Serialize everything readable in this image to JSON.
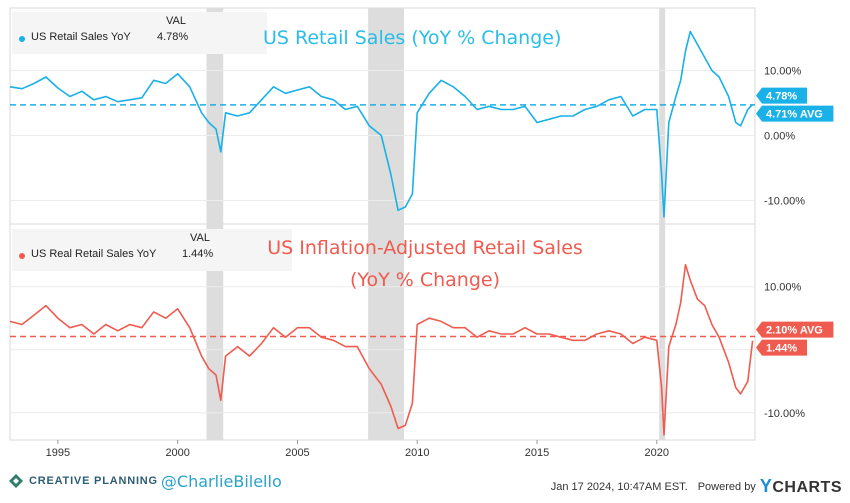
{
  "chart_data": [
    {
      "type": "line",
      "title": "US Retail Sales (YoY % Change)",
      "series": [
        {
          "name": "US Retail Sales YoY",
          "latest_value": "4.78%",
          "average": "4.71% AVG",
          "color": "#1ab0e8",
          "x": [
            1993.0,
            1993.5,
            1994.0,
            1994.5,
            1995.0,
            1995.5,
            1996.0,
            1996.5,
            1997.0,
            1997.5,
            1998.0,
            1998.5,
            1999.0,
            1999.5,
            2000.0,
            2000.5,
            2001.0,
            2001.3,
            2001.6,
            2001.8,
            2002.0,
            2002.5,
            2003.0,
            2003.5,
            2004.0,
            2004.5,
            2005.0,
            2005.5,
            2006.0,
            2006.5,
            2007.0,
            2007.5,
            2008.0,
            2008.5,
            2008.9,
            2009.2,
            2009.5,
            2009.8,
            2010.0,
            2010.5,
            2011.0,
            2011.5,
            2012.0,
            2012.5,
            2013.0,
            2013.5,
            2014.0,
            2014.5,
            2015.0,
            2015.5,
            2016.0,
            2016.5,
            2017.0,
            2017.5,
            2018.0,
            2018.5,
            2019.0,
            2019.5,
            2020.0,
            2020.2,
            2020.3,
            2020.5,
            2020.8,
            2021.0,
            2021.2,
            2021.4,
            2021.7,
            2022.0,
            2022.3,
            2022.6,
            2023.0,
            2023.3,
            2023.5,
            2023.8,
            2024.0
          ],
          "y": [
            7.5,
            7.2,
            8.0,
            9.0,
            7.3,
            6.0,
            6.8,
            5.5,
            6.0,
            5.2,
            5.5,
            5.8,
            8.5,
            8.0,
            9.5,
            7.5,
            3.5,
            2.0,
            1.0,
            -2.5,
            3.5,
            3.0,
            3.5,
            5.5,
            7.5,
            6.5,
            7.0,
            7.5,
            6.0,
            5.5,
            4.0,
            4.5,
            1.5,
            0.0,
            -6.0,
            -11.5,
            -11.0,
            -9.0,
            3.5,
            6.5,
            8.5,
            7.5,
            6.0,
            4.0,
            4.5,
            4.0,
            4.0,
            4.5,
            2.0,
            2.5,
            3.0,
            3.0,
            4.0,
            4.5,
            5.5,
            6.0,
            3.0,
            4.0,
            4.0,
            -6.0,
            -12.5,
            2.0,
            6.0,
            8.5,
            13.0,
            16.0,
            14.0,
            12.0,
            10.0,
            9.0,
            6.0,
            2.0,
            1.5,
            4.0,
            4.78
          ],
          "ylim": [
            -13,
            19
          ],
          "yticks": [
            "10.00%",
            "0.00%",
            "-10.00%"
          ],
          "ytick_values": [
            10,
            0,
            -10
          ]
        }
      ]
    },
    {
      "type": "line",
      "title": "US Inflation-Adjusted Retail Sales (YoY % Change)",
      "series": [
        {
          "name": "US Real Retail Sales YoY",
          "latest_value": "1.44%",
          "average": "2.10% AVG",
          "color": "#ef5b4f",
          "x": [
            1993.0,
            1993.5,
            1994.0,
            1994.5,
            1995.0,
            1995.5,
            1996.0,
            1996.5,
            1997.0,
            1997.5,
            1998.0,
            1998.5,
            1999.0,
            1999.5,
            2000.0,
            2000.5,
            2001.0,
            2001.3,
            2001.6,
            2001.8,
            2002.0,
            2002.5,
            2003.0,
            2003.5,
            2004.0,
            2004.5,
            2005.0,
            2005.5,
            2006.0,
            2006.5,
            2007.0,
            2007.5,
            2008.0,
            2008.5,
            2008.9,
            2009.2,
            2009.5,
            2009.8,
            2010.0,
            2010.5,
            2011.0,
            2011.5,
            2012.0,
            2012.5,
            2013.0,
            2013.5,
            2014.0,
            2014.5,
            2015.0,
            2015.5,
            2016.0,
            2016.5,
            2017.0,
            2017.5,
            2018.0,
            2018.5,
            2019.0,
            2019.5,
            2020.0,
            2020.2,
            2020.3,
            2020.5,
            2020.8,
            2021.0,
            2021.2,
            2021.4,
            2021.7,
            2022.0,
            2022.3,
            2022.6,
            2023.0,
            2023.3,
            2023.5,
            2023.8,
            2024.0
          ],
          "y": [
            4.5,
            4.0,
            5.5,
            7.0,
            5.0,
            3.5,
            4.0,
            2.5,
            4.0,
            3.0,
            4.0,
            3.5,
            6.0,
            5.0,
            6.5,
            3.5,
            -1.0,
            -3.0,
            -4.0,
            -8.0,
            -1.0,
            0.5,
            -1.0,
            1.0,
            3.5,
            2.0,
            3.5,
            3.5,
            2.0,
            1.5,
            0.5,
            0.5,
            -3.0,
            -5.5,
            -9.0,
            -12.5,
            -12.0,
            -8.5,
            4.0,
            5.0,
            4.5,
            3.5,
            3.5,
            2.0,
            3.0,
            2.5,
            2.5,
            3.5,
            2.5,
            2.5,
            2.0,
            1.5,
            1.5,
            2.5,
            3.0,
            2.5,
            1.0,
            2.0,
            1.5,
            -6.0,
            -13.5,
            0.5,
            4.0,
            7.5,
            13.5,
            11.0,
            8.0,
            7.0,
            4.0,
            2.0,
            -2.0,
            -6.0,
            -7.0,
            -5.0,
            1.44
          ],
          "ylim": [
            -14,
            19
          ],
          "yticks": [
            "10.00%",
            "0.00%",
            "-10.00%"
          ],
          "ytick_values": [
            10,
            0,
            -10
          ]
        }
      ]
    }
  ],
  "recessions": [
    {
      "start": 2001.2,
      "end": 2001.9
    },
    {
      "start": 2007.95,
      "end": 2009.45
    },
    {
      "start": 2020.1,
      "end": 2020.35
    }
  ],
  "x_axis": {
    "range": [
      1993.0,
      2024.1
    ],
    "ticks": [
      "1995",
      "2000",
      "2005",
      "2010",
      "2015",
      "2020"
    ],
    "tick_values": [
      1995,
      2000,
      2005,
      2010,
      2015,
      2020
    ]
  },
  "legend": {
    "header": "VAL"
  },
  "footer": {
    "brand": "CREATIVE PLANNING",
    "handle": "@CharlieBilello",
    "timestamp": "Jan 17 2024, 10:47AM EST.",
    "powered_by": "Powered by",
    "ycharts_y": "Y",
    "ycharts_rest": "CHARTS"
  }
}
